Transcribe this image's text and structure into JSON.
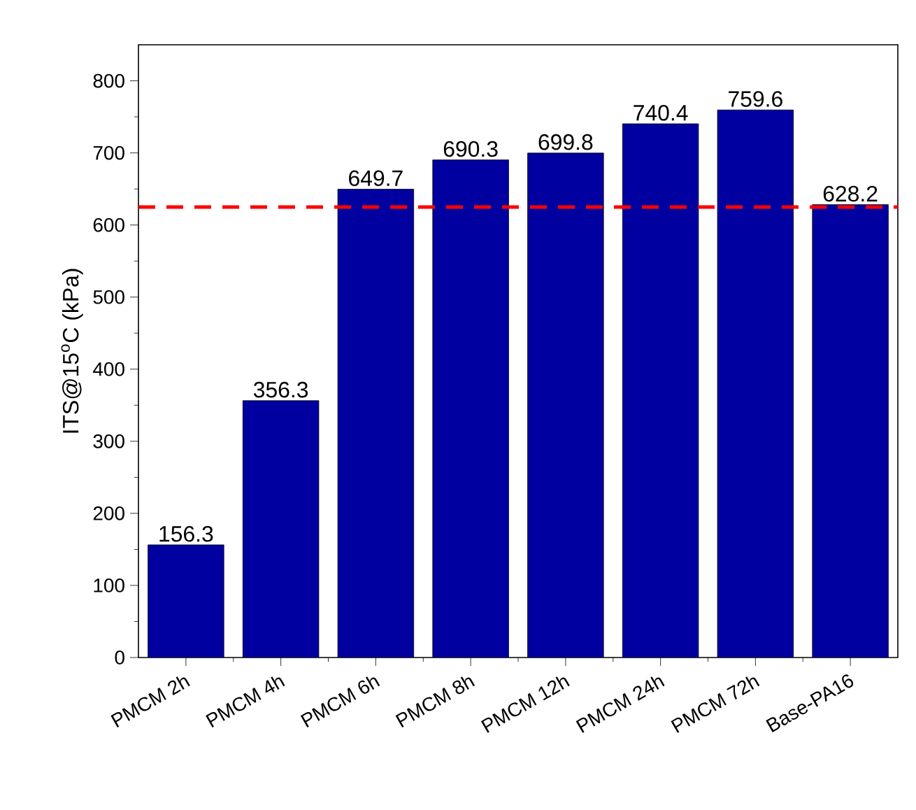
{
  "chart_data": {
    "type": "bar",
    "ylabel": "ITS@15$^{o}$C (kPa)",
    "categories": [
      "PMCM 2h",
      "PMCM 4h",
      "PMCM 6h",
      "PMCM 8h",
      "PMCM 12h",
      "PMCM 24h",
      "PMCM 72h",
      "Base-PA16"
    ],
    "values": [
      156.3,
      356.3,
      649.7,
      690.3,
      699.8,
      740.4,
      759.6,
      628.2
    ],
    "color": "#0000a0",
    "ylim": [
      0,
      850
    ],
    "yticks": [
      0,
      100,
      200,
      300,
      400,
      500,
      600,
      700,
      800
    ],
    "data_labels": true,
    "grid": false,
    "ref_lines": [
      {
        "axis": "y",
        "value": 625,
        "color": "#ff0000",
        "line_style": "dashed"
      }
    ]
  }
}
